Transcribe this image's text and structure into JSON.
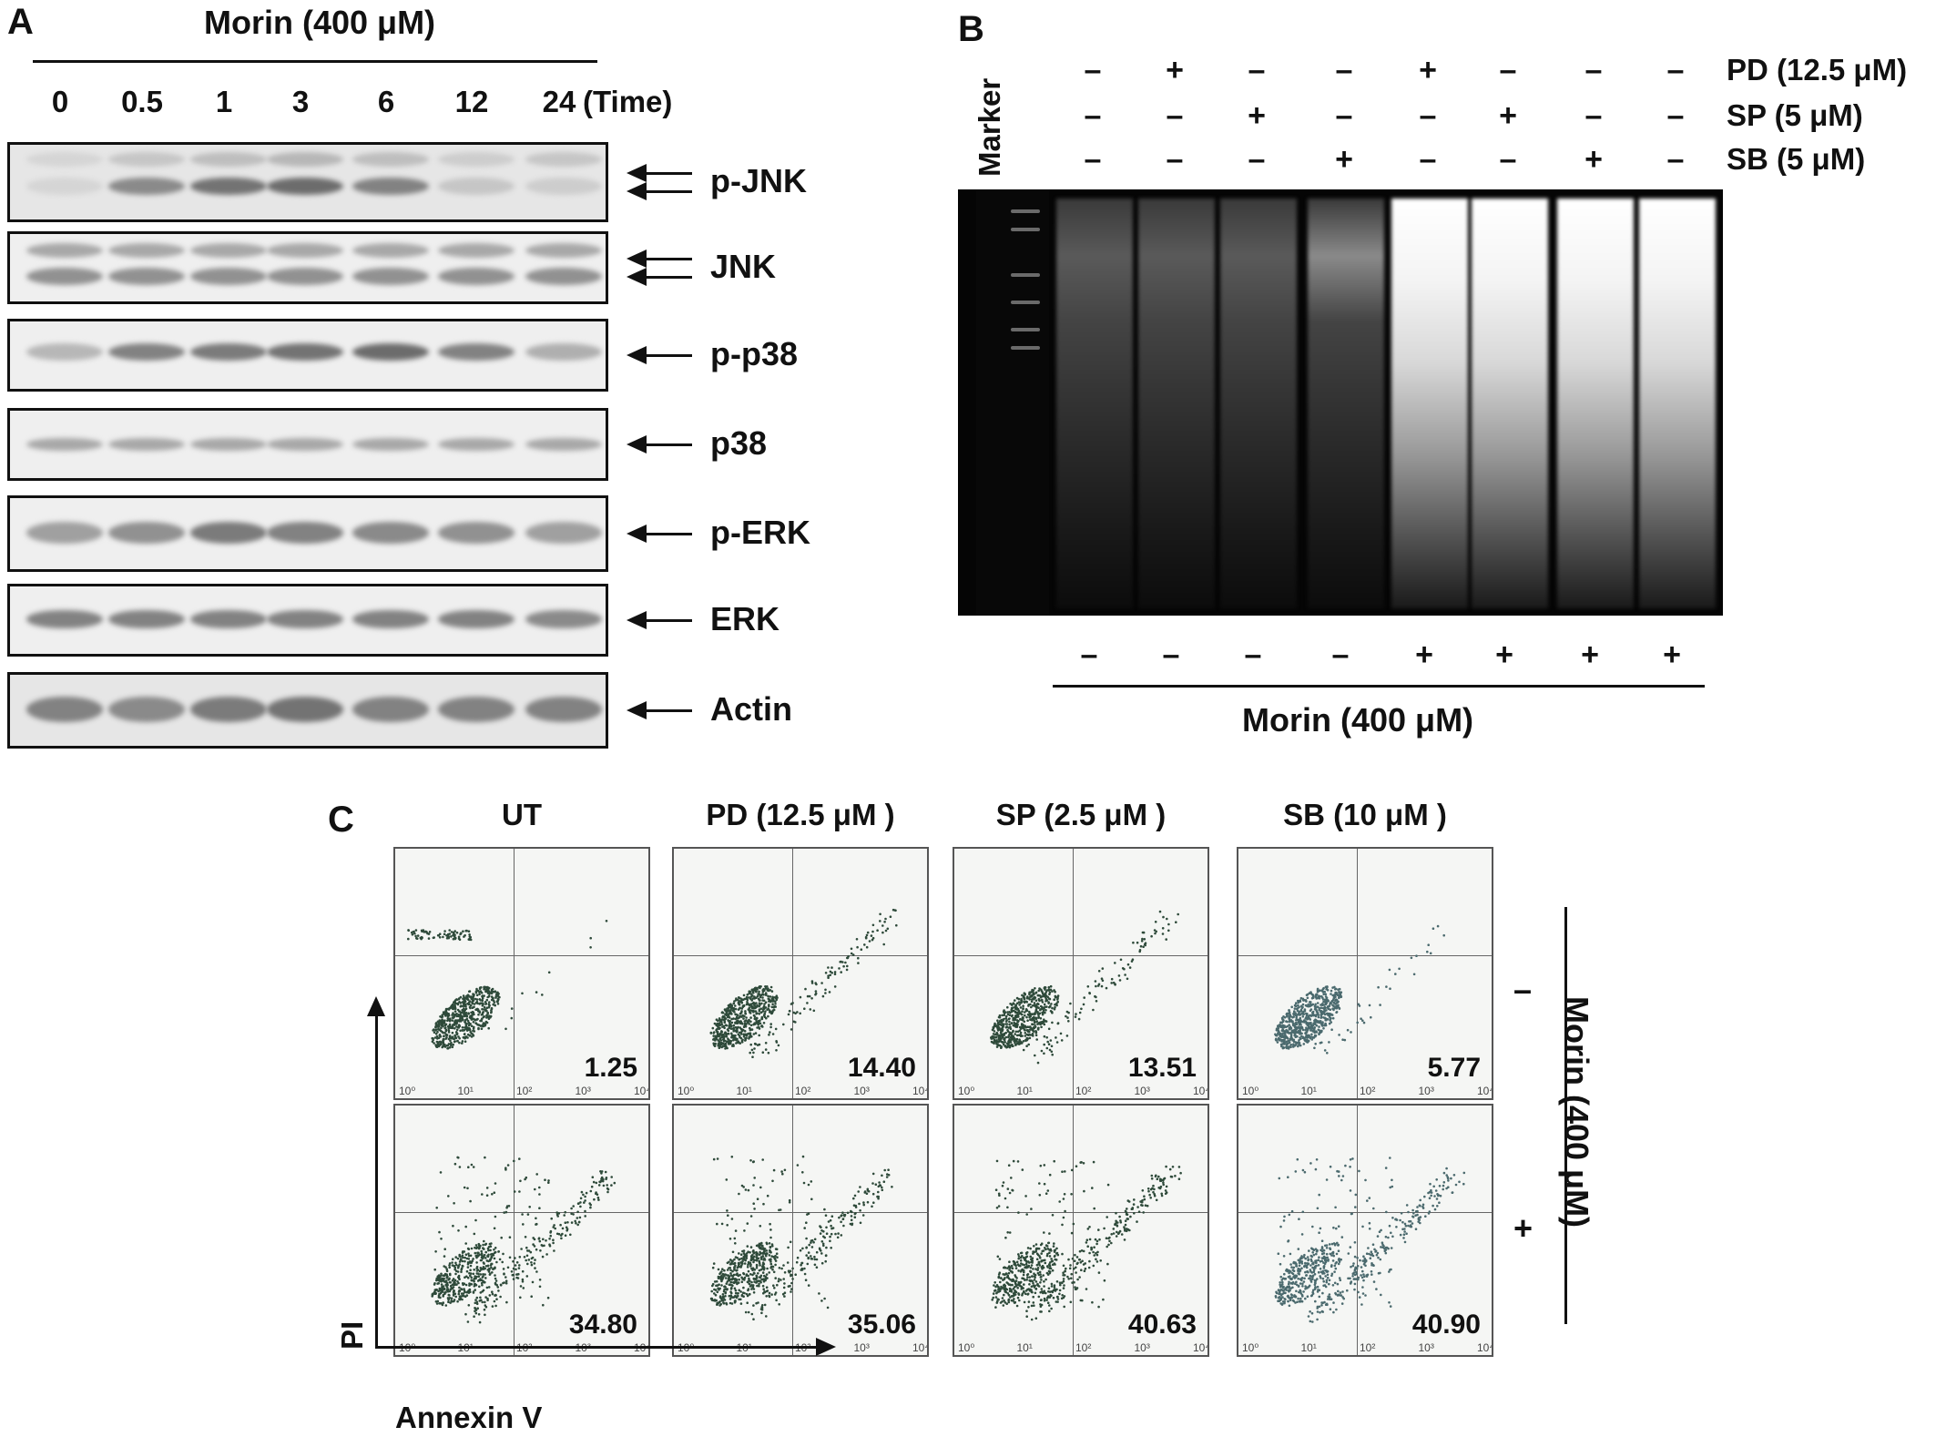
{
  "panelA": {
    "letter": "A",
    "treatment": "Morin (400 μM)",
    "times": [
      "0",
      "0.5",
      "1",
      "3",
      "6",
      "12",
      "24"
    ],
    "time_label": "(Time)",
    "blots": [
      {
        "label": "p-JNK",
        "arrows": 2
      },
      {
        "label": "JNK",
        "arrows": 2
      },
      {
        "label": "p-p38",
        "arrows": 1
      },
      {
        "label": "p38",
        "arrows": 1
      },
      {
        "label": "p-ERK",
        "arrows": 1
      },
      {
        "label": "ERK",
        "arrows": 1
      },
      {
        "label": "Actin",
        "arrows": 1
      }
    ]
  },
  "panelB": {
    "letter": "B",
    "marker_label": "Marker",
    "inhibitor_rows": [
      {
        "label": "PD (12.5 μM)",
        "signs": [
          "–",
          "+",
          "–",
          "–",
          "+",
          "–",
          "–",
          "–"
        ]
      },
      {
        "label": "SP (5 μM)",
        "signs": [
          "–",
          "–",
          "+",
          "–",
          "–",
          "+",
          "–",
          "–"
        ]
      },
      {
        "label": "SB (5 μM)",
        "signs": [
          "–",
          "–",
          "–",
          "+",
          "–",
          "–",
          "+",
          "–"
        ]
      }
    ],
    "morin_signs": [
      "–",
      "–",
      "–",
      "–",
      "+",
      "+",
      "+",
      "+"
    ],
    "morin_label": "Morin (400 μM)"
  },
  "panelC": {
    "letter": "C",
    "columns": [
      "UT",
      "PD (12.5 μM )",
      "SP (2.5 μM )",
      "SB (10 μM )"
    ],
    "rows": [
      {
        "sign": "–",
        "values": [
          "1.25",
          "14.40",
          "13.51",
          "5.77"
        ]
      },
      {
        "sign": "+",
        "values": [
          "34.80",
          "35.06",
          "40.63",
          "40.90"
        ]
      }
    ],
    "side_label": "Morin (400 μM)",
    "y_axis": "PI",
    "x_axis": "Annexin V",
    "x_ticks": [
      "10⁰",
      "10¹",
      "10²",
      "10³",
      "10⁴"
    ]
  }
}
